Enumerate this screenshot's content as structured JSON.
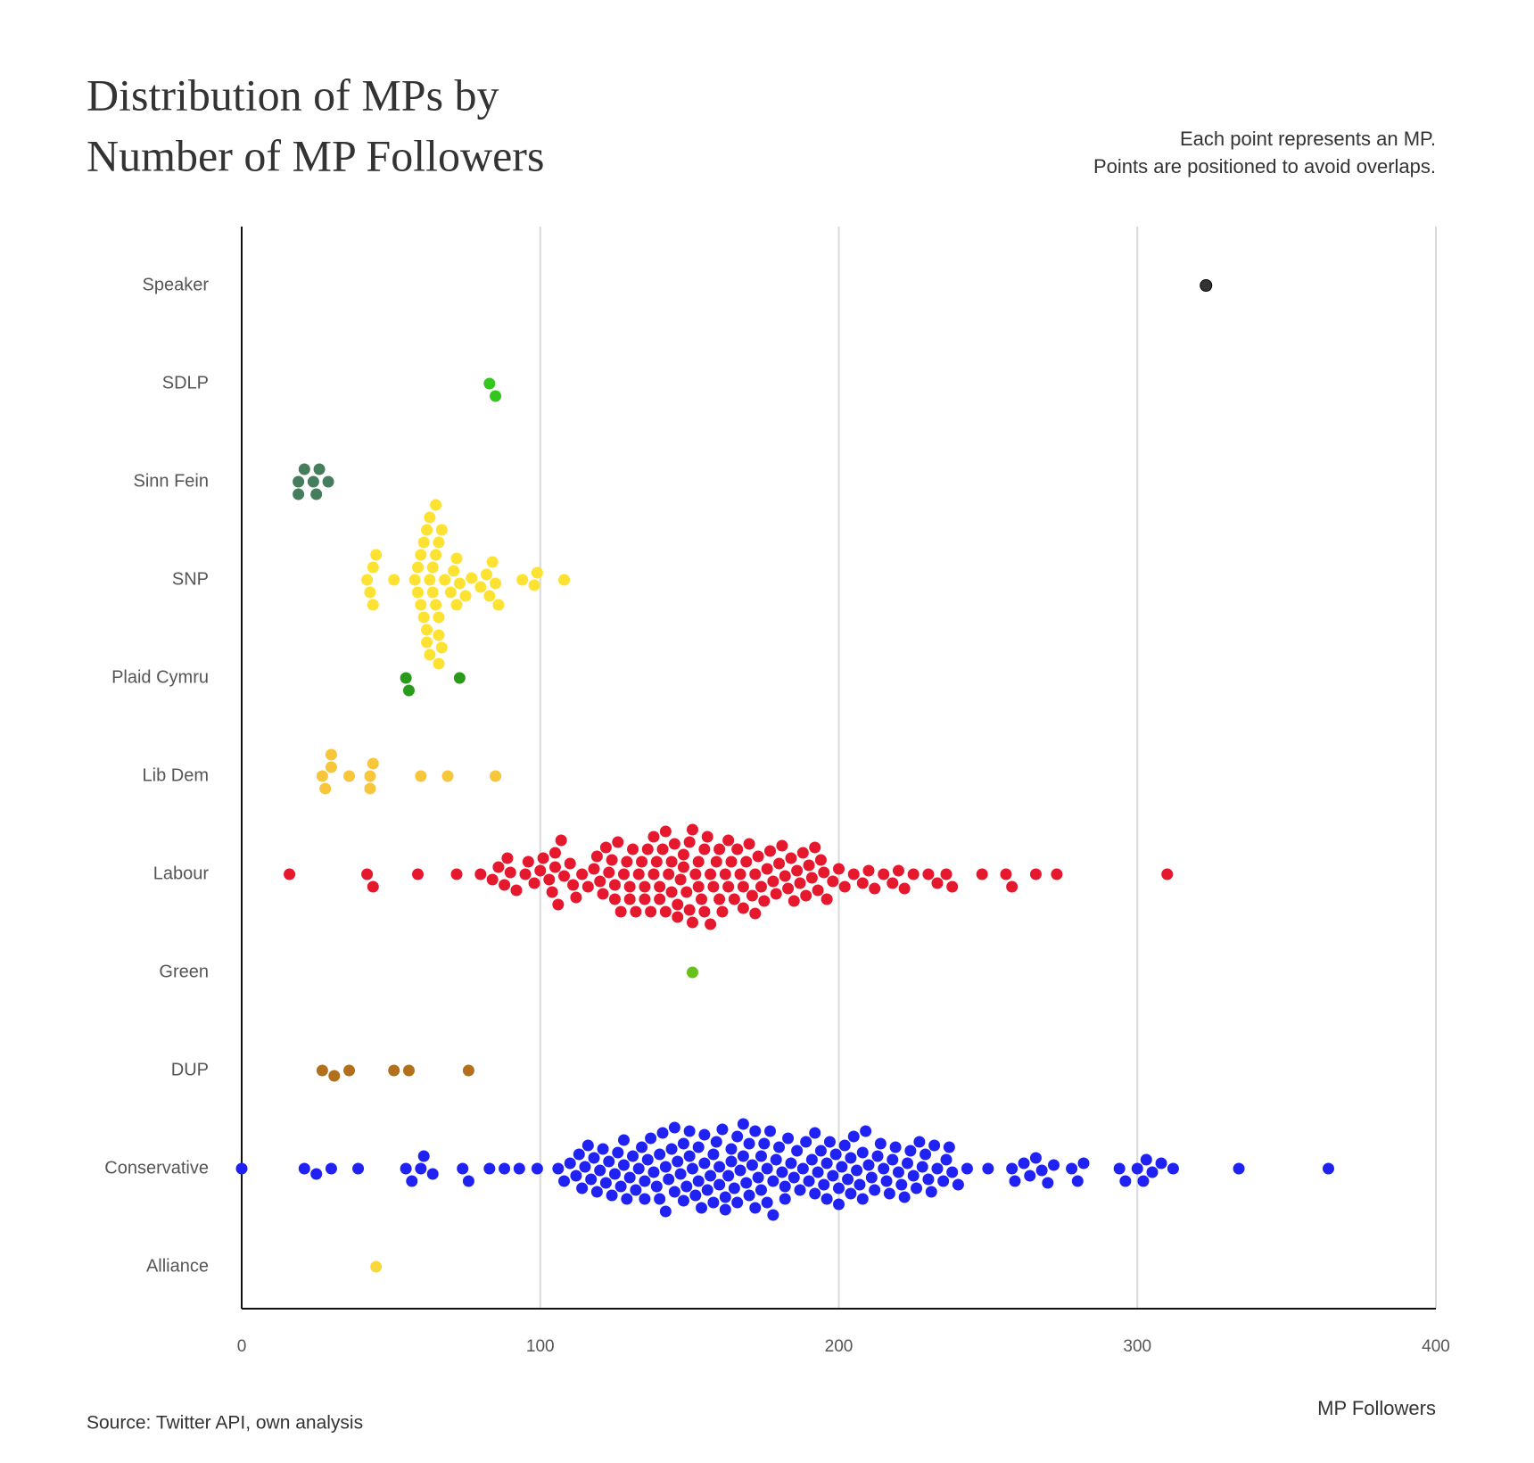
{
  "chart_data": {
    "type": "beeswarm",
    "title_lines": [
      "Distribution of MPs by",
      "Number of MP Followers"
    ],
    "subtitle_lines": [
      "Each point represents an MP.",
      "Points are positioned to avoid overlaps."
    ],
    "source": "Source: Twitter API, own analysis",
    "x_label": "MP Followers",
    "xlim": [
      0,
      400
    ],
    "xticks": [
      0,
      100,
      200,
      300,
      400
    ],
    "grid": true,
    "series": [
      {
        "name": "Speaker",
        "color": "#333333",
        "values": [
          323
        ]
      },
      {
        "name": "SDLP",
        "color": "#33c61f",
        "values": [
          83,
          85
        ]
      },
      {
        "name": "Sinn Fein",
        "color": "#467d5d",
        "values": [
          19,
          19,
          21,
          24,
          25,
          26,
          29
        ]
      },
      {
        "name": "SNP",
        "color": "#fde232",
        "values": [
          42,
          43,
          44,
          44,
          45,
          51,
          58,
          59,
          59,
          60,
          60,
          61,
          61,
          62,
          62,
          62,
          63,
          63,
          63,
          64,
          64,
          65,
          65,
          65,
          66,
          66,
          66,
          66,
          67,
          67,
          68,
          70,
          71,
          72,
          72,
          73,
          75,
          77,
          80,
          82,
          83,
          84,
          85,
          86,
          94,
          98,
          99,
          108
        ]
      },
      {
        "name": "Plaid Cymru",
        "color": "#2a9a1a",
        "values": [
          55,
          56,
          73
        ]
      },
      {
        "name": "Lib Dem",
        "color": "#f8c63a",
        "values": [
          27,
          28,
          30,
          30,
          36,
          43,
          43,
          44,
          60,
          69,
          85
        ]
      },
      {
        "name": "Labour",
        "color": "#e6182d",
        "values": [
          16,
          42,
          44,
          59,
          72,
          80,
          84,
          86,
          88,
          89,
          90,
          92,
          95,
          96,
          98,
          100,
          101,
          103,
          104,
          105,
          105,
          106,
          107,
          108,
          110,
          111,
          112,
          114,
          116,
          118,
          119,
          120,
          121,
          122,
          123,
          124,
          125,
          125,
          126,
          127,
          128,
          129,
          130,
          130,
          131,
          132,
          133,
          134,
          135,
          135,
          136,
          137,
          138,
          138,
          139,
          140,
          140,
          141,
          142,
          142,
          143,
          144,
          144,
          145,
          146,
          146,
          147,
          148,
          148,
          149,
          150,
          150,
          151,
          151,
          152,
          153,
          153,
          154,
          155,
          155,
          156,
          157,
          157,
          158,
          159,
          160,
          160,
          161,
          162,
          163,
          163,
          164,
          165,
          166,
          167,
          168,
          168,
          169,
          170,
          171,
          172,
          172,
          173,
          174,
          175,
          176,
          177,
          178,
          179,
          180,
          181,
          182,
          183,
          184,
          185,
          186,
          187,
          188,
          189,
          190,
          191,
          192,
          193,
          194,
          195,
          196,
          198,
          200,
          202,
          205,
          208,
          210,
          212,
          215,
          218,
          220,
          222,
          225,
          230,
          233,
          236,
          238,
          248,
          256,
          258,
          266,
          273,
          310
        ]
      },
      {
        "name": "Green",
        "color": "#66c21a",
        "values": [
          151
        ]
      },
      {
        "name": "DUP",
        "color": "#b2701c",
        "values": [
          27,
          31,
          36,
          51,
          56,
          76
        ]
      },
      {
        "name": "Conservative",
        "color": "#1f22f2",
        "values": [
          0,
          21,
          25,
          30,
          39,
          55,
          57,
          60,
          61,
          64,
          74,
          76,
          83,
          88,
          93,
          99,
          106,
          108,
          110,
          112,
          113,
          114,
          115,
          116,
          117,
          118,
          119,
          120,
          121,
          122,
          123,
          124,
          125,
          126,
          127,
          128,
          128,
          129,
          130,
          131,
          132,
          133,
          134,
          135,
          135,
          136,
          137,
          138,
          139,
          140,
          140,
          141,
          142,
          142,
          143,
          144,
          145,
          145,
          146,
          147,
          148,
          148,
          149,
          150,
          150,
          151,
          152,
          153,
          153,
          154,
          155,
          155,
          156,
          157,
          158,
          158,
          159,
          160,
          160,
          161,
          162,
          162,
          163,
          164,
          164,
          165,
          166,
          166,
          167,
          168,
          168,
          169,
          170,
          170,
          171,
          172,
          172,
          173,
          174,
          174,
          175,
          176,
          176,
          177,
          178,
          178,
          179,
          180,
          181,
          182,
          182,
          183,
          184,
          185,
          186,
          187,
          188,
          189,
          190,
          191,
          192,
          192,
          193,
          194,
          195,
          196,
          196,
          197,
          198,
          199,
          200,
          200,
          201,
          202,
          203,
          204,
          204,
          205,
          206,
          207,
          208,
          208,
          209,
          210,
          211,
          212,
          213,
          214,
          215,
          216,
          217,
          218,
          219,
          220,
          221,
          222,
          223,
          224,
          225,
          226,
          227,
          228,
          229,
          230,
          231,
          232,
          233,
          235,
          236,
          237,
          238,
          240,
          243,
          250,
          258,
          259,
          262,
          264,
          266,
          268,
          270,
          272,
          278,
          280,
          282,
          294,
          296,
          300,
          302,
          303,
          305,
          308,
          312,
          334,
          364
        ]
      },
      {
        "name": "Alliance",
        "color": "#f8d83a",
        "values": [
          45
        ]
      }
    ]
  }
}
